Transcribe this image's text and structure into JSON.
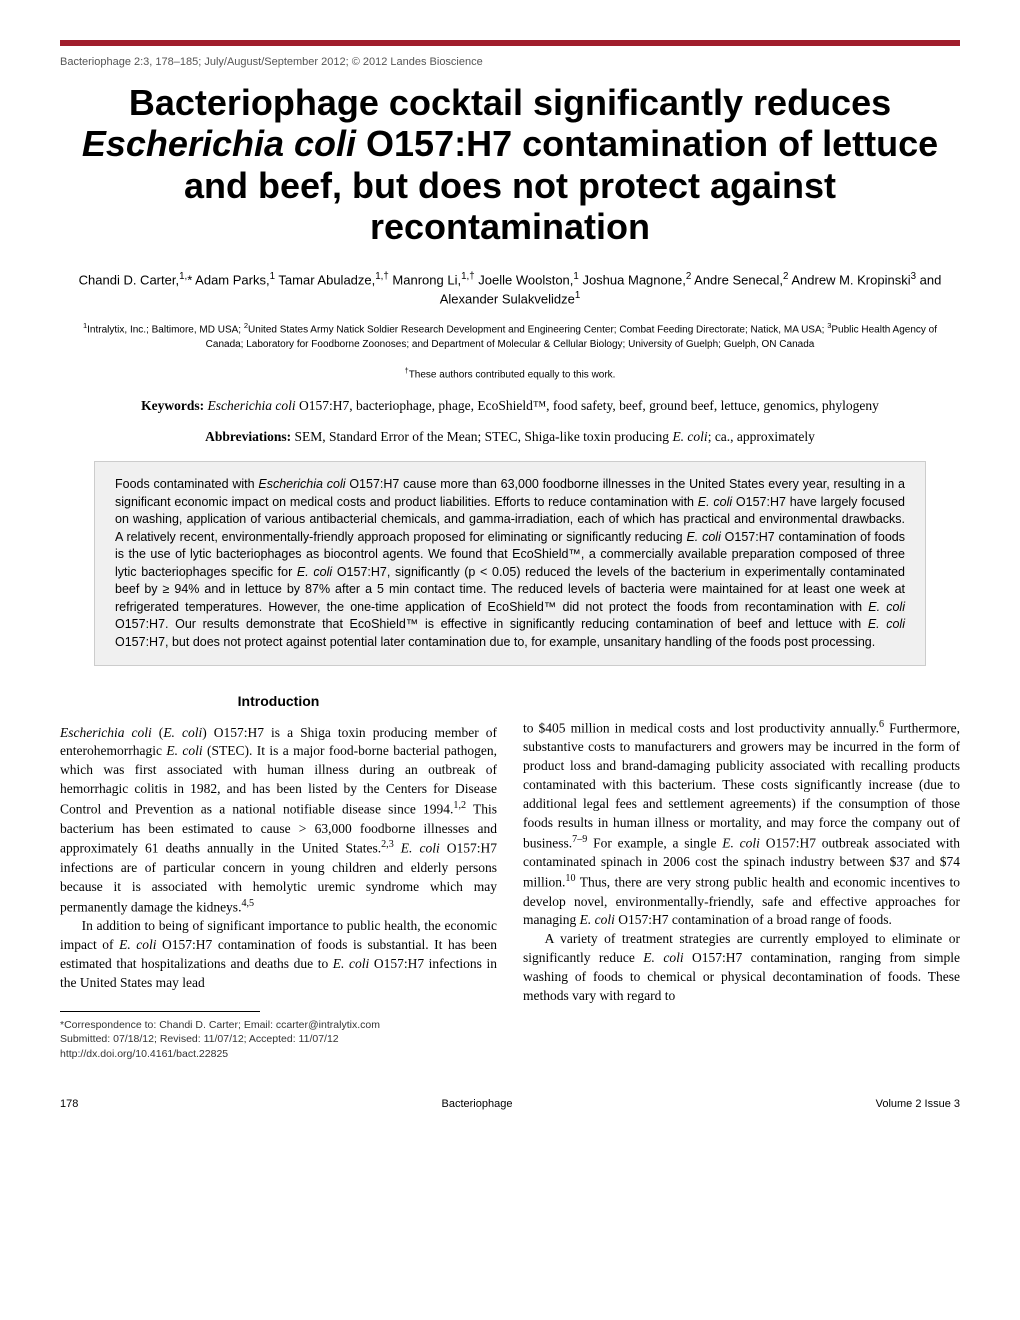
{
  "header": {
    "citation": "Bacteriophage 2:3, 178–185; July/August/September 2012; © 2012 Landes Bioscience"
  },
  "title_html": "Bacteriophage cocktail significantly reduces <span class='italic'>Escherichia coli</span> O157:H7 contamination of lettuce and beef, but does not protect against recontamination",
  "authors_html": "Chandi D. Carter,<sup>1,</sup>* Adam Parks,<sup>1</sup> Tamar Abuladze,<sup>1,†</sup> Manrong Li,<sup>1,†</sup> Joelle Woolston,<sup>1</sup> Joshua Magnone,<sup>2</sup> Andre Senecal,<sup>2</sup> Andrew M. Kropinski<sup>3</sup> and Alexander Sulakvelidze<sup>1</sup>",
  "affiliations_html": "<sup>1</sup>Intralytix, Inc.; Baltimore, MD USA; <sup>2</sup>United States Army Natick Soldier Research Development and Engineering Center; Combat Feeding Directorate; Natick, MA USA; <sup>3</sup>Public Health Agency of Canada; Laboratory for Foodborne Zoonoses; and Department of Molecular & Cellular Biology; University of Guelph; Guelph, ON Canada",
  "equal_contribution_html": "<sup>†</sup>These authors contributed equally to this work.",
  "keywords_label": "Keywords:",
  "keywords_html": " <span class='italic'>Escherichia coli</span> O157:H7, bacteriophage, phage, EcoShield™, food safety, beef, ground beef, lettuce, genomics, phylogeny",
  "abbreviations_label": "Abbreviations:",
  "abbreviations_html": " SEM, Standard Error of the Mean; STEC, Shiga-like toxin producing <span class='italic'>E. coli</span>; ca., approximately",
  "abstract_html": "Foods contaminated with <span class='italic'>Escherichia coli</span> O157:H7 cause more than 63,000 foodborne illnesses in the United States every year, resulting in a significant economic impact on medical costs and product liabilities. Efforts to reduce contamination with <span class='italic'>E. coli</span> O157:H7 have largely focused on washing, application of various antibacterial chemicals, and gamma-irradiation, each of which has practical and environmental drawbacks. A relatively recent, environmentally-friendly approach proposed for eliminating or significantly reducing <span class='italic'>E. coli</span> O157:H7 contamination of foods is the use of lytic bacteriophages as biocontrol agents. We found that EcoShield™, a commercially available preparation composed of three lytic bacteriophages specific for <span class='italic'>E. coli</span> O157:H7, significantly (p < 0.05) reduced the levels of the bacterium in experimentally contaminated beef by ≥ 94% and in lettuce by 87% after a 5 min contact time. The reduced levels of bacteria were maintained for at least one week at refrigerated temperatures. However, the one-time application of EcoShield™ did not protect the foods from recontamination with <span class='italic'>E. coli</span> O157:H7. Our results demonstrate that EcoShield™ is effective in significantly reducing contamination of beef and lettuce with <span class='italic'>E. coli</span> O157:H7, but does not protect against potential later contamination due to, for example, unsanitary handling of the foods post processing.",
  "introduction_heading": "Introduction",
  "col1_p1_html": "<span class='italic'>Escherichia coli</span> (<span class='italic'>E. coli</span>) O157:H7 is a Shiga toxin producing member of enterohemorrhagic <span class='italic'>E. coli</span> (STEC). It is a major food-borne bacterial pathogen, which was first associated with human illness during an outbreak of hemorrhagic colitis in 1982, and has been listed by the Centers for Disease Control and Prevention as a national notifiable disease since 1994.<sup>1,2</sup> This bacterium has been estimated to cause > 63,000 foodborne illnesses and approximately 61 deaths annually in the United States.<sup>2,3</sup> <span class='italic'>E. coli</span> O157:H7 infections are of particular concern in young children and elderly persons because it is associated with hemolytic uremic syndrome which may permanently damage the kidneys.<sup>4,5</sup>",
  "col1_p2_html": "In addition to being of significant importance to public health, the economic impact of <span class='italic'>E. coli</span> O157:H7 contamination of foods is substantial. It has been estimated that hospitalizations and deaths due to <span class='italic'>E. coli</span> O157:H7 infections in the United States may lead",
  "col2_p1_html": "to $405 million in medical costs and lost productivity annually.<sup>6</sup> Furthermore, substantive costs to manufacturers and growers may be incurred in the form of product loss and brand-damaging publicity associated with recalling products contaminated with this bacterium. These costs significantly increase (due to additional legal fees and settlement agreements) if the consumption of those foods results in human illness or mortality, and may force the company out of business.<sup>7–9</sup> For example, a single <span class='italic'>E. coli</span> O157:H7 outbreak associated with contaminated spinach in 2006 cost the spinach industry between $37 and $74 million.<sup>10</sup> Thus, there are very strong public health and economic incentives to develop novel, environmentally-friendly, safe and effective approaches for managing <span class='italic'>E. coli</span> O157:H7 contamination of a broad range of foods.",
  "col2_p2_html": "A variety of treatment strategies are currently employed to eliminate or significantly reduce <span class='italic'>E. coli</span> O157:H7 contamination, ranging from simple washing of foods to chemical or physical decontamination of foods. These methods vary with regard to",
  "footnote_html": "*Correspondence to: Chandi D. Carter; Email: ccarter@intralytix.com<br>Submitted: 07/18/12; Revised: 11/07/12; Accepted: 11/07/12<br>http://dx.doi.org/10.4161/bact.22825",
  "footer": {
    "page": "178",
    "journal": "Bacteriophage",
    "volume": "Volume 2 Issue 3"
  },
  "style": {
    "accent_color": "#a01e2c",
    "abstract_bg": "#f0f0f0",
    "body_font": "Georgia, 'Times New Roman', serif",
    "sans_font": "Arial, Helvetica, sans-serif"
  }
}
